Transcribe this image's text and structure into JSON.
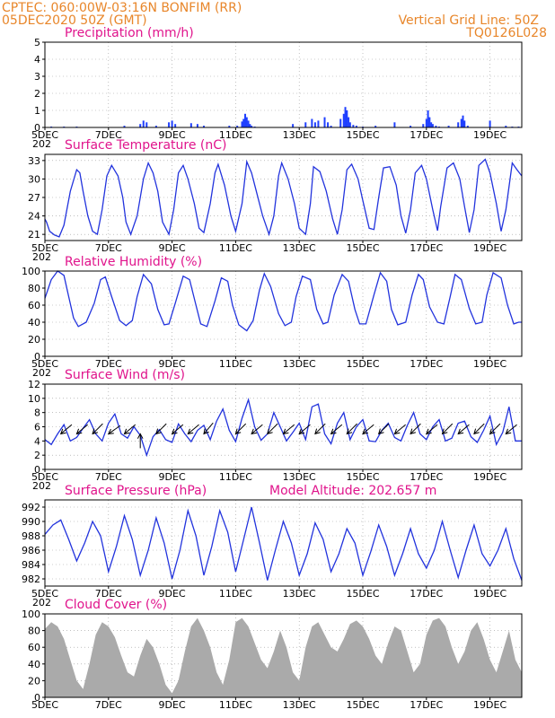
{
  "header": {
    "line1_left": "CPTEC:   060:00W-03:16N   BONFIM (RR)",
    "line2_left": "05DEC2020 50Z (GMT)",
    "line1_right": "Vertical Grid Line: 50Z",
    "line2_right": "TQ0126L028"
  },
  "x_axis": {
    "labels": [
      "5DEC",
      "7DEC",
      "9DEC",
      "11DEC",
      "13DEC",
      "15DEC",
      "17DEC",
      "19DEC"
    ],
    "label_days": [
      0,
      2,
      4,
      6,
      8,
      10,
      12,
      14
    ],
    "xlim_days": [
      0,
      15
    ],
    "sub_label": "202"
  },
  "colors": {
    "line": "#2233dd",
    "bar": "#1f3fff",
    "cloud": "#aaaaaa",
    "header": "#e8862a",
    "title": "#e0148c"
  },
  "chart_data": [
    {
      "type": "bar",
      "title": "Precipitation (mm/h)",
      "ylim": [
        0,
        5
      ],
      "yticks": [
        0,
        1,
        2,
        3,
        4,
        5
      ],
      "x": [
        0.2,
        0.6,
        1.0,
        2.5,
        3.0,
        3.1,
        3.2,
        3.5,
        3.9,
        4.0,
        4.1,
        4.6,
        4.8,
        5.0,
        5.8,
        6.05,
        6.2,
        6.25,
        6.3,
        6.35,
        6.4,
        6.45,
        6.5,
        6.6,
        7.8,
        8.2,
        8.4,
        8.5,
        8.6,
        8.8,
        8.9,
        9.0,
        9.3,
        9.4,
        9.45,
        9.5,
        9.55,
        9.6,
        9.7,
        9.8,
        10.0,
        10.4,
        11.0,
        11.5,
        11.9,
        12.0,
        12.05,
        12.1,
        12.15,
        12.2,
        12.3,
        12.4,
        12.7,
        13.0,
        13.1,
        13.15,
        13.2,
        13.3,
        14.0,
        14.5,
        14.7,
        14.9
      ],
      "values": [
        0.05,
        0.05,
        0.05,
        0.1,
        0.2,
        0.4,
        0.3,
        0.1,
        0.3,
        0.4,
        0.2,
        0.25,
        0.2,
        0.1,
        0.1,
        0.1,
        0.35,
        0.5,
        0.8,
        0.6,
        0.4,
        0.2,
        0.1,
        0.05,
        0.2,
        0.3,
        0.5,
        0.3,
        0.4,
        0.6,
        0.3,
        0.1,
        0.5,
        0.8,
        1.2,
        1.0,
        0.6,
        0.3,
        0.15,
        0.1,
        0.05,
        0.1,
        0.3,
        0.1,
        0.2,
        0.5,
        1.0,
        0.6,
        0.3,
        0.2,
        0.1,
        0.05,
        0.1,
        0.3,
        0.5,
        0.7,
        0.4,
        0.1,
        0.4,
        0.1,
        0.05,
        0.05
      ]
    },
    {
      "type": "line",
      "title": "Surface Temperature (nC)",
      "ylim": [
        20,
        34
      ],
      "yticks": [
        21,
        24,
        27,
        30,
        33
      ],
      "x": [
        0,
        0.05,
        0.15,
        0.3,
        0.45,
        0.6,
        0.8,
        1.0,
        1.1,
        1.2,
        1.35,
        1.5,
        1.65,
        1.8,
        1.95,
        2.1,
        2.3,
        2.45,
        2.55,
        2.7,
        2.9,
        3.1,
        3.25,
        3.4,
        3.55,
        3.7,
        3.9,
        4.05,
        4.2,
        4.35,
        4.5,
        4.7,
        4.85,
        5.0,
        5.2,
        5.35,
        5.45,
        5.65,
        5.85,
        6.0,
        6.2,
        6.35,
        6.5,
        6.65,
        6.85,
        7.05,
        7.2,
        7.35,
        7.45,
        7.65,
        7.85,
        8.0,
        8.2,
        8.35,
        8.45,
        8.65,
        8.85,
        9.05,
        9.2,
        9.35,
        9.5,
        9.65,
        9.85,
        10.0,
        10.2,
        10.35,
        10.5,
        10.65,
        10.85,
        11.05,
        11.2,
        11.35,
        11.5,
        11.65,
        11.85,
        12.0,
        12.2,
        12.35,
        12.45,
        12.65,
        12.85,
        13.05,
        13.2,
        13.35,
        13.5,
        13.65,
        13.85,
        14.0,
        14.2,
        14.35,
        14.5,
        14.7,
        14.85,
        15.0
      ],
      "values": [
        23.5,
        23.0,
        21.5,
        20.9,
        20.6,
        22.5,
        28.0,
        31.5,
        31.0,
        28.0,
        24.0,
        21.5,
        21.0,
        25.0,
        30.5,
        32.2,
        30.5,
        27.0,
        23.0,
        21.0,
        24.0,
        30.0,
        32.6,
        31.0,
        28.0,
        23.0,
        21.0,
        25.0,
        31.0,
        32.2,
        30.0,
        26.0,
        22.0,
        21.3,
        26.0,
        31.0,
        32.4,
        29.0,
        24.0,
        21.5,
        26.0,
        32.8,
        31.0,
        28.0,
        24.0,
        21.0,
        24.0,
        30.5,
        32.6,
        30.0,
        26.0,
        22.0,
        21.0,
        26.0,
        32.0,
        31.2,
        28.0,
        23.5,
        21.0,
        25.0,
        31.5,
        32.4,
        30.0,
        26.5,
        22.0,
        21.8,
        27.0,
        31.8,
        32.0,
        29.0,
        24.0,
        21.2,
        25.0,
        31.0,
        32.2,
        30.0,
        25.0,
        21.6,
        25.5,
        31.8,
        32.6,
        30.0,
        25.5,
        21.3,
        25.0,
        32.2,
        33.2,
        31.0,
        26.0,
        21.5,
        25.0,
        32.6,
        31.5,
        30.5
      ]
    },
    {
      "type": "line",
      "title": "Relative Humidity (%)",
      "ylim": [
        0,
        100
      ],
      "yticks": [
        0,
        20,
        40,
        60,
        80,
        100
      ],
      "x": [
        0,
        0.2,
        0.4,
        0.6,
        0.75,
        0.9,
        1.05,
        1.3,
        1.55,
        1.75,
        1.9,
        2.1,
        2.35,
        2.55,
        2.75,
        2.9,
        3.1,
        3.35,
        3.55,
        3.75,
        3.9,
        4.1,
        4.35,
        4.55,
        4.75,
        4.9,
        5.1,
        5.35,
        5.55,
        5.75,
        5.9,
        6.1,
        6.35,
        6.55,
        6.75,
        6.9,
        7.1,
        7.35,
        7.55,
        7.75,
        7.9,
        8.1,
        8.35,
        8.55,
        8.75,
        8.9,
        9.1,
        9.35,
        9.55,
        9.75,
        9.9,
        10.1,
        10.35,
        10.55,
        10.75,
        10.9,
        11.1,
        11.35,
        11.55,
        11.75,
        11.9,
        12.1,
        12.35,
        12.55,
        12.75,
        12.9,
        13.1,
        13.35,
        13.55,
        13.75,
        13.9,
        14.1,
        14.35,
        14.55,
        14.75,
        14.9,
        15.0
      ],
      "values": [
        68,
        90,
        100,
        95,
        70,
        45,
        35,
        40,
        62,
        90,
        93,
        70,
        42,
        36,
        42,
        70,
        96,
        85,
        55,
        37,
        38,
        62,
        94,
        90,
        60,
        38,
        35,
        65,
        92,
        88,
        60,
        37,
        30,
        42,
        78,
        97,
        82,
        50,
        36,
        40,
        70,
        94,
        90,
        55,
        38,
        40,
        72,
        96,
        88,
        55,
        38,
        38,
        72,
        98,
        88,
        55,
        37,
        40,
        72,
        96,
        90,
        58,
        40,
        38,
        70,
        96,
        90,
        56,
        38,
        40,
        72,
        98,
        92,
        60,
        38,
        40,
        40
      ]
    },
    {
      "type": "line",
      "title": "Surface Wind (m/s)",
      "ylim": [
        0,
        12
      ],
      "yticks": [
        0,
        2,
        4,
        6,
        8,
        10,
        12
      ],
      "x": [
        0,
        0.2,
        0.4,
        0.6,
        0.8,
        1.0,
        1.2,
        1.4,
        1.6,
        1.8,
        2.0,
        2.2,
        2.4,
        2.6,
        2.8,
        3.0,
        3.2,
        3.4,
        3.6,
        3.8,
        4.0,
        4.2,
        4.4,
        4.6,
        4.8,
        5.0,
        5.2,
        5.4,
        5.6,
        5.8,
        6.0,
        6.2,
        6.4,
        6.6,
        6.8,
        7.0,
        7.2,
        7.4,
        7.6,
        7.8,
        8.0,
        8.2,
        8.4,
        8.6,
        8.8,
        9.0,
        9.2,
        9.4,
        9.6,
        9.8,
        10.0,
        10.2,
        10.4,
        10.6,
        10.8,
        11.0,
        11.2,
        11.4,
        11.6,
        11.8,
        12.0,
        12.2,
        12.4,
        12.6,
        12.8,
        13.0,
        13.2,
        13.4,
        13.6,
        13.8,
        14.0,
        14.2,
        14.4,
        14.6,
        14.8,
        15.0
      ],
      "values": [
        4.2,
        3.5,
        5.0,
        6.3,
        4.0,
        4.5,
        5.8,
        7.0,
        5.0,
        4.0,
        6.5,
        7.8,
        5.0,
        4.4,
        6.0,
        4.8,
        2.0,
        4.6,
        5.6,
        4.2,
        3.8,
        6.4,
        5.0,
        3.9,
        5.5,
        6.2,
        4.2,
        6.8,
        8.5,
        5.5,
        3.9,
        7.2,
        9.8,
        6.0,
        4.1,
        5.0,
        8.0,
        6.0,
        4.0,
        5.2,
        6.5,
        4.2,
        8.8,
        9.2,
        5.0,
        3.6,
        6.5,
        8.0,
        4.2,
        6.0,
        7.0,
        4.0,
        3.9,
        5.5,
        6.5,
        4.5,
        4.0,
        6.2,
        8.0,
        5.0,
        4.2,
        6.0,
        7.0,
        4.0,
        4.4,
        6.5,
        6.8,
        4.6,
        3.8,
        5.5,
        7.5,
        3.5,
        5.2,
        8.8,
        4.0,
        4.0
      ]
    },
    {
      "type": "line",
      "title": "Surface Pressure (hPa)",
      "annotation": "Model Altitude: 202.657  m",
      "ylim": [
        981,
        993
      ],
      "yticks": [
        982,
        984,
        986,
        988,
        990,
        992
      ],
      "x": [
        0,
        0.25,
        0.5,
        0.75,
        1.0,
        1.25,
        1.5,
        1.75,
        2.0,
        2.25,
        2.5,
        2.75,
        3.0,
        3.25,
        3.5,
        3.75,
        4.0,
        4.25,
        4.5,
        4.75,
        5.0,
        5.25,
        5.5,
        5.75,
        6.0,
        6.25,
        6.5,
        6.75,
        7.0,
        7.25,
        7.5,
        7.75,
        8.0,
        8.25,
        8.5,
        8.75,
        9.0,
        9.25,
        9.5,
        9.75,
        10.0,
        10.25,
        10.5,
        10.75,
        11.0,
        11.25,
        11.5,
        11.75,
        12.0,
        12.25,
        12.5,
        12.75,
        13.0,
        13.25,
        13.5,
        13.75,
        14.0,
        14.25,
        14.5,
        14.75,
        15.0
      ],
      "values": [
        988.2,
        989.5,
        990.2,
        987.5,
        984.5,
        987.0,
        990.0,
        988.0,
        983.0,
        986.5,
        990.8,
        987.5,
        982.5,
        986.0,
        990.5,
        987.0,
        982.0,
        986.0,
        991.5,
        988.0,
        982.5,
        986.5,
        991.5,
        988.5,
        983.0,
        987.5,
        992.0,
        987.0,
        981.8,
        986.0,
        990.0,
        987.0,
        982.5,
        985.5,
        989.8,
        987.5,
        983.0,
        985.5,
        989.0,
        987.0,
        982.5,
        985.8,
        989.5,
        986.5,
        982.5,
        985.5,
        989.0,
        985.5,
        983.5,
        986.0,
        990.0,
        986.0,
        982.2,
        986.0,
        989.5,
        985.5,
        983.8,
        986.0,
        989.0,
        984.8,
        981.8
      ]
    },
    {
      "type": "area",
      "title": "Cloud Cover (%)",
      "ylim": [
        0,
        100
      ],
      "yticks": [
        0,
        20,
        40,
        60,
        80,
        100
      ],
      "x": [
        0,
        0.2,
        0.4,
        0.6,
        0.8,
        1.0,
        1.2,
        1.4,
        1.6,
        1.8,
        2.0,
        2.2,
        2.4,
        2.6,
        2.8,
        3.0,
        3.2,
        3.4,
        3.6,
        3.8,
        4.0,
        4.2,
        4.4,
        4.6,
        4.8,
        5.0,
        5.2,
        5.4,
        5.6,
        5.8,
        6.0,
        6.2,
        6.4,
        6.6,
        6.8,
        7.0,
        7.2,
        7.4,
        7.6,
        7.8,
        8.0,
        8.2,
        8.4,
        8.6,
        8.8,
        9.0,
        9.2,
        9.4,
        9.6,
        9.8,
        10.0,
        10.2,
        10.4,
        10.6,
        10.8,
        11.0,
        11.2,
        11.4,
        11.6,
        11.8,
        12.0,
        12.2,
        12.4,
        12.6,
        12.8,
        13.0,
        13.2,
        13.4,
        13.6,
        13.8,
        14.0,
        14.2,
        14.4,
        14.6,
        14.8,
        15.0
      ],
      "values": [
        82,
        90,
        85,
        70,
        45,
        20,
        10,
        40,
        75,
        90,
        85,
        72,
        50,
        30,
        25,
        50,
        70,
        60,
        40,
        15,
        5,
        20,
        55,
        85,
        95,
        80,
        60,
        30,
        15,
        45,
        90,
        95,
        85,
        65,
        45,
        35,
        55,
        80,
        60,
        30,
        20,
        60,
        85,
        90,
        75,
        60,
        55,
        70,
        88,
        92,
        85,
        70,
        50,
        40,
        65,
        85,
        80,
        55,
        30,
        40,
        75,
        92,
        95,
        85,
        60,
        40,
        55,
        80,
        90,
        70,
        45,
        30,
        55,
        80,
        45,
        30
      ]
    }
  ],
  "wind_barbs": {
    "comment_free": true,
    "x": [
      0.5,
      1.0,
      1.5,
      2.0,
      2.5,
      3.0,
      3.5,
      4.0,
      4.5,
      5.0,
      6.0,
      6.5,
      7.0,
      7.5,
      8.0,
      8.5,
      9.0,
      9.5,
      10.0,
      10.5,
      11.0,
      11.5,
      12.0,
      12.5,
      13.0,
      13.5,
      14.0,
      14.5
    ],
    "dir_deg": [
      40,
      40,
      45,
      35,
      40,
      270,
      45,
      40,
      40,
      50,
      45,
      40,
      45,
      40,
      40,
      45,
      40,
      45,
      40,
      45,
      40,
      45,
      40,
      45,
      40,
      45,
      45,
      40
    ]
  }
}
